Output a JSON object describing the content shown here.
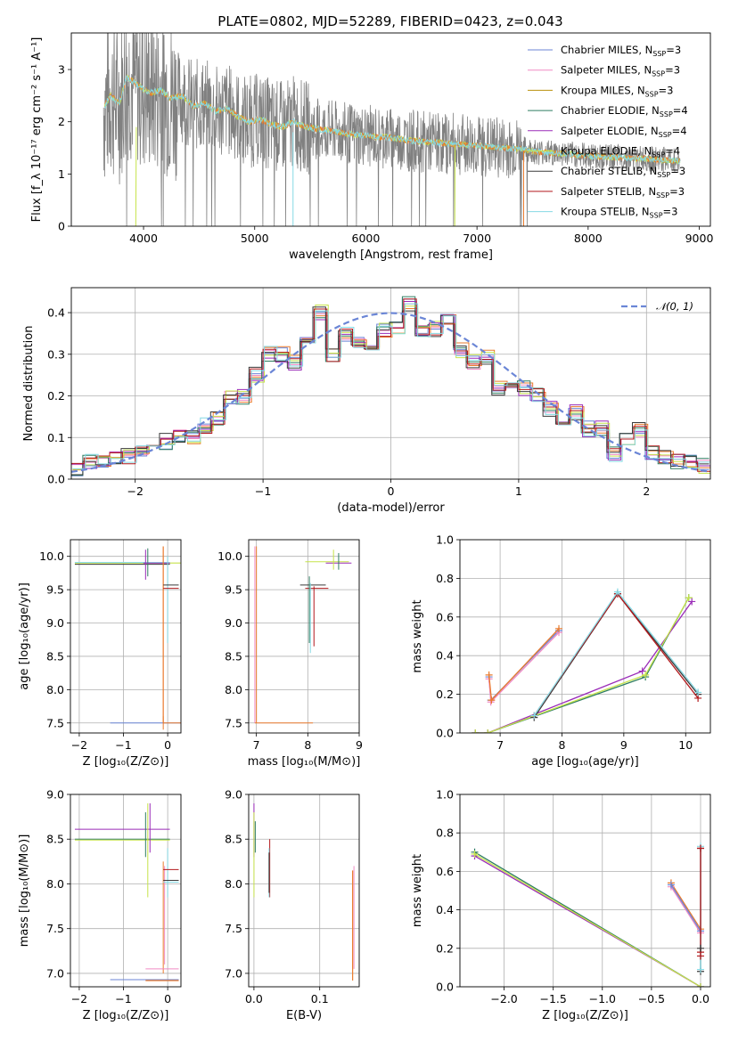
{
  "figure": {
    "title": "PLATE=0802, MJD=52289, FIBERID=0423, z=0.043"
  },
  "colors": {
    "Chabrier MILES": "#6b86d6",
    "Salpeter MILES": "#f08ac4",
    "Kroupa MILES": "#b9900c",
    "Chabrier ELODIE": "#2e7d61",
    "Salpeter ELODIE": "#9a2bb8",
    "Kroupa ELODIE": "#c6e34a",
    "Chabrier STELIB": "#3a3a3a",
    "Salpeter STELIB": "#b3181c",
    "Kroupa STELIB": "#86d9e4",
    "data": "#808080",
    "normal": "#6b86d6",
    "orange": "#ea7b2d"
  },
  "chart_data": [
    {
      "id": "spectrum",
      "type": "line",
      "xlabel": "wavelength [Angstrom, rest frame]",
      "ylabel": "Flux [f_λ 10^-17 erg cm^-2 s^-1 A^-1]",
      "xlim": [
        3350,
        9100
      ],
      "ylim": [
        0,
        3.7
      ],
      "xticks": [
        4000,
        5000,
        6000,
        7000,
        8000,
        9000
      ],
      "yticks": [
        0,
        1,
        2,
        3
      ],
      "grid": false,
      "legend_position": "upper-right",
      "series": [
        {
          "name": "Chabrier MILES, N_SSP=3",
          "color_key": "Chabrier MILES"
        },
        {
          "name": "Salpeter MILES, N_SSP=3",
          "color_key": "Salpeter MILES"
        },
        {
          "name": "Kroupa MILES, N_SSP=3",
          "color_key": "Kroupa MILES"
        },
        {
          "name": "Chabrier ELODIE, N_SSP=4",
          "color_key": "Chabrier ELODIE"
        },
        {
          "name": "Salpeter ELODIE, N_SSP=4",
          "color_key": "Salpeter ELODIE"
        },
        {
          "name": "Kroupa ELODIE, N_SSP=4",
          "color_key": "Kroupa ELODIE"
        },
        {
          "name": "Chabrier STELIB, N_SSP=3",
          "color_key": "Chabrier STELIB"
        },
        {
          "name": "Salpeter STELIB, N_SSP=3",
          "color_key": "Salpeter STELIB"
        },
        {
          "name": "Kroupa STELIB, N_SSP=3",
          "color_key": "Kroupa STELIB"
        }
      ],
      "model_continuum": {
        "x": [
          3650,
          3700,
          3780,
          3850,
          3950,
          4050,
          4150,
          4250,
          4350,
          4450,
          4550,
          4650,
          4750,
          4850,
          4950,
          5050,
          5150,
          5250,
          5350,
          5450,
          5600,
          5750,
          5900,
          6050,
          6200,
          6350,
          6500,
          6650,
          6800,
          6950,
          7100,
          7250,
          7400,
          7550,
          7700,
          7850,
          8000,
          8200,
          8400,
          8600,
          8800
        ],
        "y": [
          2.3,
          2.5,
          2.35,
          2.85,
          2.7,
          2.55,
          2.6,
          2.45,
          2.5,
          2.3,
          2.35,
          2.2,
          2.25,
          2.1,
          2.0,
          2.05,
          1.95,
          1.9,
          2.0,
          1.9,
          1.85,
          1.8,
          1.75,
          1.72,
          1.7,
          1.65,
          1.62,
          1.6,
          1.57,
          1.55,
          1.52,
          1.5,
          1.48,
          1.42,
          1.4,
          1.38,
          1.35,
          1.32,
          1.3,
          1.28,
          1.25
        ]
      }
    },
    {
      "id": "residuals",
      "type": "line",
      "xlabel": "(data-model)/error",
      "ylabel": "Normed distribution",
      "xlim": [
        -2.5,
        2.5
      ],
      "ylim": [
        0,
        0.46
      ],
      "xticks": [
        -2,
        -1,
        0,
        1,
        2
      ],
      "yticks": [
        0.0,
        0.1,
        0.2,
        0.3,
        0.4
      ],
      "grid": true,
      "legend_position": "upper-right",
      "legend": [
        "𝒩(0, 1)"
      ],
      "bin_edges": [
        -2.5,
        -2.4,
        -2.3,
        -2.2,
        -2.1,
        -2.0,
        -1.9,
        -1.8,
        -1.7,
        -1.6,
        -1.5,
        -1.4,
        -1.3,
        -1.2,
        -1.1,
        -1.0,
        -0.9,
        -0.8,
        -0.7,
        -0.6,
        -0.5,
        -0.4,
        -0.3,
        -0.2,
        -0.1,
        0.0,
        0.1,
        0.2,
        0.3,
        0.4,
        0.5,
        0.6,
        0.7,
        0.8,
        0.9,
        1.0,
        1.1,
        1.2,
        1.3,
        1.4,
        1.5,
        1.6,
        1.7,
        1.8,
        1.9,
        2.0,
        2.1,
        2.2,
        2.3,
        2.4,
        2.5
      ],
      "hist_base": [
        0.02,
        0.04,
        0.045,
        0.05,
        0.055,
        0.06,
        0.09,
        0.09,
        0.1,
        0.1,
        0.13,
        0.15,
        0.2,
        0.2,
        0.25,
        0.3,
        0.3,
        0.28,
        0.33,
        0.4,
        0.3,
        0.35,
        0.33,
        0.32,
        0.36,
        0.36,
        0.42,
        0.35,
        0.36,
        0.39,
        0.31,
        0.28,
        0.29,
        0.22,
        0.22,
        0.22,
        0.2,
        0.17,
        0.14,
        0.16,
        0.12,
        0.12,
        0.06,
        0.1,
        0.12,
        0.06,
        0.05,
        0.04,
        0.04,
        0.03
      ]
    },
    {
      "id": "age-vs-Z",
      "type": "scatter",
      "xlabel": "Z [log10(Z/Z⊙)]",
      "ylabel": "age  [log10(age/yr)]",
      "xlim": [
        -2.2,
        0.3
      ],
      "ylim": [
        7.35,
        10.25
      ],
      "xticks": [
        -2,
        -1,
        0
      ],
      "yticks": [
        7.5,
        8.0,
        8.5,
        9.0,
        9.5,
        10.0
      ],
      "grid": true
    },
    {
      "id": "age-vs-mass",
      "type": "scatter",
      "xlabel": "mass [log10(M/M⊙)]",
      "ylabel": "",
      "xlim": [
        6.85,
        9.0
      ],
      "ylim": [
        7.35,
        10.25
      ],
      "xticks": [
        7,
        8,
        9
      ],
      "yticks": [
        7.5,
        8.0,
        8.5,
        9.0,
        9.5,
        10.0
      ],
      "grid": true
    },
    {
      "id": "massweight-vs-age",
      "type": "line",
      "xlabel": "age  [log10(age/yr)]",
      "ylabel": "mass weight",
      "xlim": [
        6.35,
        10.4
      ],
      "ylim": [
        0,
        1.0
      ],
      "xticks": [
        7,
        8,
        9,
        10
      ],
      "yticks": [
        0.0,
        0.2,
        0.4,
        0.6,
        0.8,
        1.0
      ],
      "grid": true,
      "series": [
        {
          "color_key": "Chabrier MILES",
          "x": [
            6.82,
            6.85,
            7.95
          ],
          "y": [
            0.29,
            0.17,
            0.53
          ]
        },
        {
          "color_key": "Salpeter MILES",
          "x": [
            6.82,
            6.85,
            7.95
          ],
          "y": [
            0.28,
            0.16,
            0.52
          ]
        },
        {
          "color_key": "orange",
          "x": [
            6.82,
            6.86,
            7.95
          ],
          "y": [
            0.3,
            0.17,
            0.54
          ]
        },
        {
          "color_key": "Chabrier ELODIE",
          "x": [
            6.6,
            6.8,
            9.35,
            10.05
          ],
          "y": [
            0.0,
            0.0,
            0.29,
            0.7
          ]
        },
        {
          "color_key": "Salpeter ELODIE",
          "x": [
            6.6,
            6.8,
            9.3,
            10.1
          ],
          "y": [
            0.0,
            0.0,
            0.32,
            0.68
          ]
        },
        {
          "color_key": "Kroupa ELODIE",
          "x": [
            6.6,
            6.8,
            9.35,
            10.05
          ],
          "y": [
            0.0,
            0.0,
            0.3,
            0.7
          ]
        },
        {
          "color_key": "Chabrier STELIB",
          "x": [
            7.55,
            8.9,
            10.2
          ],
          "y": [
            0.08,
            0.72,
            0.2
          ]
        },
        {
          "color_key": "Salpeter STELIB",
          "x": [
            7.55,
            8.9,
            10.2
          ],
          "y": [
            0.09,
            0.72,
            0.18
          ]
        },
        {
          "color_key": "Kroupa STELIB",
          "x": [
            7.55,
            8.9,
            10.2
          ],
          "y": [
            0.09,
            0.73,
            0.21
          ]
        }
      ]
    },
    {
      "id": "mass-vs-Z",
      "type": "scatter",
      "xlabel": "Z [log10(Z/Z⊙)]",
      "ylabel": "mass [log10(M/M⊙)]",
      "xlim": [
        -2.2,
        0.3
      ],
      "ylim": [
        6.85,
        9.0
      ],
      "xticks": [
        -2,
        -1,
        0
      ],
      "yticks": [
        7.0,
        7.5,
        8.0,
        8.5,
        9.0
      ],
      "grid": true
    },
    {
      "id": "mass-vs-EBV",
      "type": "scatter",
      "xlabel": "E(B-V)",
      "ylabel": "",
      "xlim": [
        -0.008,
        0.16
      ],
      "ylim": [
        6.85,
        9.0
      ],
      "xticks": [
        0.0,
        0.1
      ],
      "yticks": [
        7.0,
        7.5,
        8.0,
        8.5,
        9.0
      ],
      "grid": true
    },
    {
      "id": "massweight-vs-Z",
      "type": "line",
      "xlabel": "Z [log10(Z/Z⊙)]",
      "ylabel": "mass weight",
      "xlim": [
        -2.45,
        0.1
      ],
      "ylim": [
        0,
        1.0
      ],
      "xticks": [
        -2.0,
        -1.5,
        -1.0,
        -0.5,
        0.0
      ],
      "yticks": [
        0.0,
        0.2,
        0.4,
        0.6,
        0.8,
        1.0
      ],
      "grid": true,
      "series": [
        {
          "color_key": "Chabrier ELODIE",
          "x": [
            -2.3,
            0.0
          ],
          "y": [
            0.7,
            0.0
          ]
        },
        {
          "color_key": "Salpeter ELODIE",
          "x": [
            -2.3,
            0.0
          ],
          "y": [
            0.68,
            0.0
          ]
        },
        {
          "color_key": "Kroupa ELODIE",
          "x": [
            -2.3,
            0.0
          ],
          "y": [
            0.69,
            0.0
          ]
        },
        {
          "color_key": "orange",
          "x": [
            -0.3,
            0.0
          ],
          "y": [
            0.54,
            0.3
          ]
        },
        {
          "color_key": "Salpeter MILES",
          "x": [
            -0.3,
            0.0
          ],
          "y": [
            0.52,
            0.28
          ]
        },
        {
          "color_key": "Chabrier MILES",
          "x": [
            -0.3,
            0.0
          ],
          "y": [
            0.53,
            0.29
          ]
        },
        {
          "color_key": "Chabrier STELIB",
          "x": [
            0.0,
            0.0
          ],
          "y": [
            0.08,
            0.72
          ]
        },
        {
          "color_key": "Kroupa STELIB",
          "x": [
            0.0,
            0.0
          ],
          "y": [
            0.09,
            0.73
          ]
        },
        {
          "color_key": "Salpeter STELIB",
          "x": [
            0.0,
            0.0
          ],
          "y": [
            0.18,
            0.72
          ]
        }
      ]
    }
  ]
}
